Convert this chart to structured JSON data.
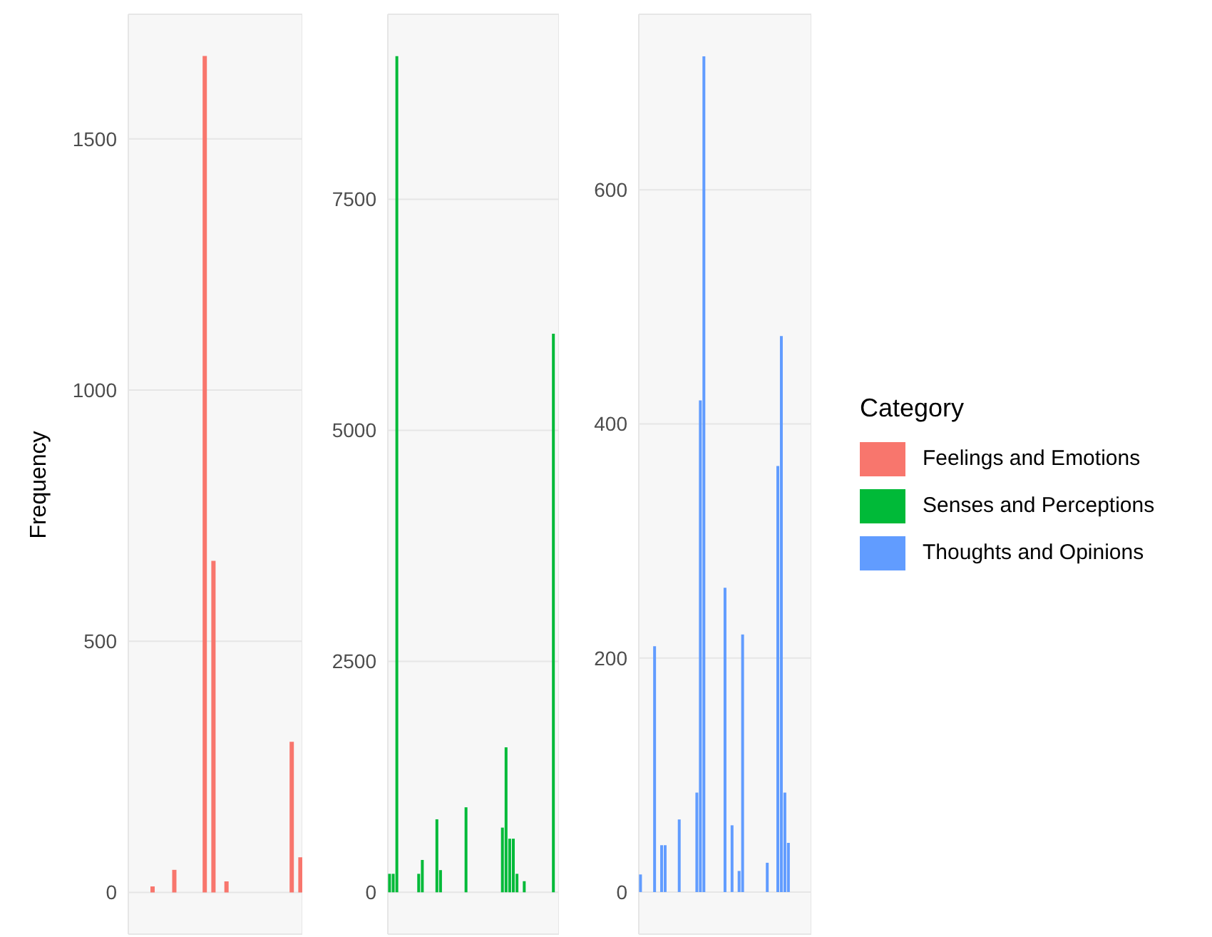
{
  "chart_data": [
    {
      "type": "bar",
      "ylabel": "Frequency",
      "categories": [
        null,
        null,
        null,
        null,
        null,
        null,
        null,
        null,
        null,
        null,
        null,
        null,
        null,
        null,
        null,
        null,
        null,
        null,
        null,
        null,
        null,
        null,
        null,
        null,
        null,
        null,
        null,
        null,
        null,
        null,
        null,
        null,
        null,
        null,
        null,
        null,
        null,
        null,
        null,
        null
      ],
      "series": [
        {
          "name": "Feelings and Emotions",
          "color": "#f8766d",
          "values": [
            0,
            0,
            0,
            0,
            0,
            12,
            0,
            0,
            0,
            0,
            45,
            0,
            0,
            0,
            0,
            0,
            0,
            1665,
            0,
            660,
            0,
            0,
            22,
            0,
            0,
            0,
            0,
            0,
            0,
            0,
            0,
            0,
            0,
            0,
            0,
            0,
            0,
            300,
            0,
            70
          ]
        }
      ],
      "ylim": [
        -83,
        1748
      ],
      "yticks": [
        0,
        500,
        1000,
        1500
      ],
      "grid": true,
      "tick_labels": "y",
      "legend": "right"
    },
    {
      "type": "bar",
      "categories": [
        null,
        null,
        null,
        null,
        null,
        null,
        null,
        null,
        null,
        null,
        null,
        null,
        null,
        null,
        null,
        null,
        null,
        null,
        null,
        null,
        null,
        null,
        null,
        null,
        null,
        null,
        null,
        null,
        null,
        null,
        null,
        null,
        null,
        null,
        null,
        null,
        null,
        null,
        null,
        null,
        null,
        null,
        null,
        null,
        null,
        null,
        null
      ],
      "series": [
        {
          "name": "Senses and Perceptions",
          "color": "#00ba38",
          "values": [
            200,
            200,
            9050,
            0,
            0,
            0,
            0,
            0,
            200,
            350,
            0,
            0,
            0,
            790,
            240,
            0,
            0,
            0,
            0,
            0,
            0,
            920,
            0,
            0,
            0,
            0,
            0,
            0,
            0,
            0,
            0,
            700,
            1570,
            580,
            580,
            200,
            0,
            120,
            0,
            0,
            0,
            0,
            0,
            0,
            0,
            6045,
            0
          ]
        }
      ],
      "ylim": [
        -453,
        9503
      ],
      "yticks": [
        0,
        2500,
        5000,
        7500
      ],
      "grid": true,
      "tick_labels": "y",
      "legend": "right"
    },
    {
      "type": "bar",
      "legend_title": "Category",
      "categories": [
        null,
        null,
        null,
        null,
        null,
        null,
        null,
        null,
        null,
        null,
        null,
        null,
        null,
        null,
        null,
        null,
        null,
        null,
        null,
        null,
        null,
        null,
        null,
        null,
        null,
        null,
        null,
        null,
        null,
        null,
        null,
        null,
        null,
        null,
        null,
        null,
        null,
        null,
        null,
        null,
        null,
        null,
        null,
        null,
        null,
        null,
        null,
        null,
        null
      ],
      "series": [
        {
          "name": "Thoughts and Opinions",
          "color": "#619cff",
          "values": [
            15,
            0,
            0,
            0,
            210,
            0,
            40,
            40,
            0,
            0,
            0,
            62,
            0,
            0,
            0,
            0,
            85,
            420,
            714,
            0,
            0,
            0,
            0,
            0,
            260,
            0,
            57,
            0,
            18,
            220,
            0,
            0,
            0,
            0,
            0,
            0,
            25,
            0,
            0,
            364,
            475,
            85,
            42,
            0,
            0,
            0,
            0,
            0,
            0
          ]
        }
      ],
      "ylim": [
        -36,
        750
      ],
      "yticks": [
        0,
        200,
        400,
        600
      ],
      "grid": true,
      "tick_labels": "y",
      "legend": "right"
    }
  ]
}
